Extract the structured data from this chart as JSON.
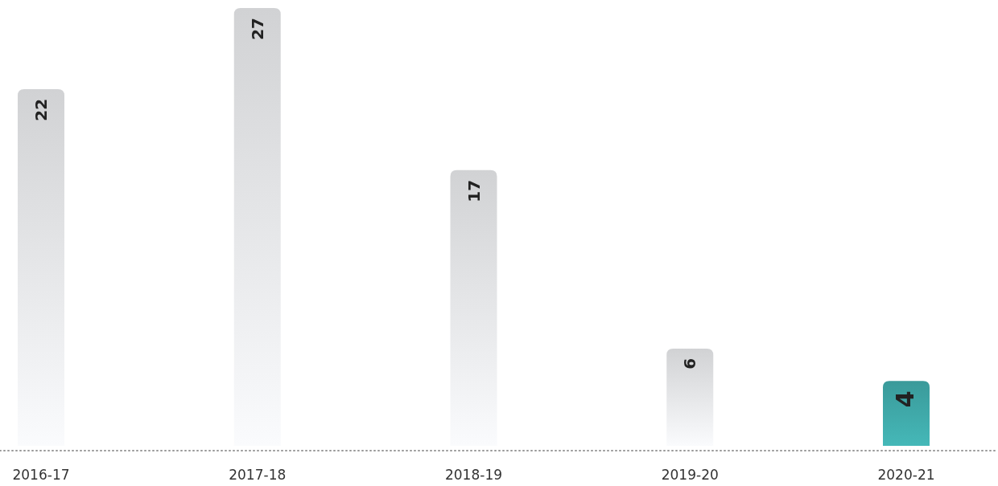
{
  "chart_data": {
    "type": "bar",
    "categories": [
      "2016-17",
      "2017-18",
      "2018-19",
      "2019-20",
      "2020-21"
    ],
    "values": [
      22,
      27,
      17,
      6,
      4
    ],
    "colors": [
      "#d1d2d4",
      "#d1d2d4",
      "#d1d2d4",
      "#d1d2d4",
      "#3a9a9a"
    ],
    "data_labels": true
  }
}
